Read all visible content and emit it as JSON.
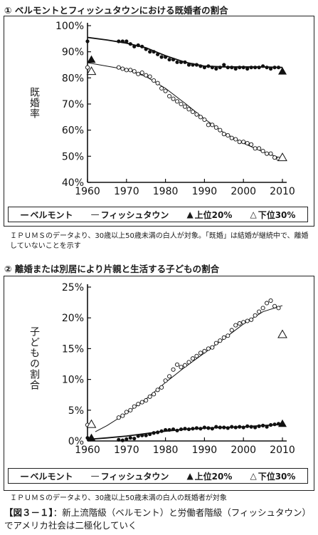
{
  "panel1_title": "① ベルモントとフィッシュタウンにおける既婚者の割合",
  "panel1_note": "ＩＰＵＭＳのデータより、30歳以上50歳未満の白人が対象。「既婚」は結婚が継続中で、離婚していないことを示す",
  "panel2_title": "② 離婚または別居により片親と生活する子どもの割合",
  "panel2_note": "ＩＰＵＭＳのデータより、30歳以上50歳未満の白人の既婚者が対象",
  "caption_label": "【図３－１】",
  "caption_text": "：新上流階級（ベルモント）と労働者階級（フィッシュタウン）でアメリカ社会は二極化していく",
  "legend": {
    "belmont": "ベルモント",
    "fishtown": "フィッシュタウン",
    "top20": "上位20%",
    "bottom30": "下位30%",
    "line_symbol": "—",
    "top_symbol": "▲",
    "bottom_symbol": "△"
  },
  "chart_data": [
    {
      "type": "scatter",
      "title": "① ベルモントとフィッシュタウンにおける既婚者の割合",
      "ylabel": "既婚率",
      "xlabel": "",
      "xlim": [
        1960,
        2010
      ],
      "ylim": [
        40,
        100
      ],
      "xticks": [
        1960,
        1970,
        1980,
        1990,
        2000,
        2010
      ],
      "yticks": [
        40,
        50,
        60,
        70,
        80,
        90,
        100
      ],
      "ytick_labels": [
        "40%",
        "50%",
        "60%",
        "70%",
        "80%",
        "90%",
        "100%"
      ],
      "grid": false,
      "legend_position": "bottom",
      "series": [
        {
          "name": "ベルモント",
          "marker": "filled-circle",
          "x": [
            1960,
            1968,
            1969,
            1970,
            1971,
            1972,
            1973,
            1974,
            1975,
            1976,
            1977,
            1978,
            1979,
            1980,
            1981,
            1982,
            1983,
            1984,
            1985,
            1986,
            1987,
            1988,
            1989,
            1990,
            1991,
            1992,
            1993,
            1994,
            1995,
            1996,
            1997,
            1998,
            1999,
            2000,
            2001,
            2002,
            2003,
            2004,
            2005,
            2006,
            2007,
            2008,
            2009
          ],
          "y": [
            94,
            94,
            94,
            94,
            93,
            92,
            92.5,
            92,
            91,
            90,
            90,
            89,
            88,
            88,
            87,
            87,
            86,
            86,
            86,
            85,
            85,
            85,
            84.5,
            84,
            84.5,
            84,
            83.5,
            84,
            85,
            84,
            84,
            83.5,
            84,
            84,
            83.5,
            84,
            84,
            84,
            84.5,
            84,
            83.5,
            84,
            84
          ]
        },
        {
          "name": "ベルモント 平滑線",
          "marker": "line",
          "x": [
            1960,
            1965,
            1970,
            1975,
            1980,
            1985,
            1990,
            1995,
            2000,
            2005,
            2010
          ],
          "y": [
            95.5,
            94.5,
            93.3,
            91.5,
            88.5,
            86,
            84.5,
            84.2,
            84.2,
            84.2,
            84
          ]
        },
        {
          "name": "フィッシュタウン",
          "marker": "open-circle",
          "x": [
            1960,
            1968,
            1969,
            1970,
            1971,
            1972,
            1973,
            1974,
            1975,
            1976,
            1977,
            1978,
            1979,
            1980,
            1981,
            1982,
            1983,
            1984,
            1985,
            1986,
            1987,
            1988,
            1989,
            1990,
            1991,
            1992,
            1993,
            1994,
            1995,
            1996,
            1997,
            1998,
            1999,
            2000,
            2001,
            2002,
            2003,
            2004,
            2005,
            2006,
            2007,
            2008,
            2009
          ],
          "y": [
            84,
            84,
            83.5,
            83,
            83,
            82.5,
            81.5,
            82,
            81,
            80.5,
            79,
            78,
            76,
            75,
            73,
            72,
            71,
            70,
            69,
            68,
            67,
            66,
            65,
            64,
            62,
            62,
            61,
            60,
            58.5,
            58,
            57,
            56.5,
            55.5,
            55.5,
            55,
            54.5,
            53,
            53,
            52,
            51,
            51,
            49.5,
            49
          ]
        },
        {
          "name": "フィッシュタウン 平滑線",
          "marker": "line",
          "x": [
            1960,
            1965,
            1970,
            1975,
            1980,
            1985,
            1990,
            1995,
            2000,
            2005,
            2010
          ],
          "y": [
            85.8,
            84.5,
            83.2,
            80.5,
            76,
            70.3,
            64.3,
            59,
            55,
            51.7,
            49
          ]
        },
        {
          "name": "上位20%",
          "marker": "filled-triangle",
          "x": [
            1961,
            2010
          ],
          "y": [
            87,
            82.5
          ]
        },
        {
          "name": "下位30%",
          "marker": "open-triangle",
          "x": [
            1961,
            2010
          ],
          "y": [
            82.5,
            49.5
          ]
        }
      ]
    },
    {
      "type": "scatter",
      "title": "② 離婚または別居により片親と生活する子どもの割合",
      "ylabel": "子どもの割合",
      "xlabel": "",
      "xlim": [
        1960,
        2010
      ],
      "ylim": [
        0,
        25
      ],
      "xticks": [
        1960,
        1970,
        1980,
        1990,
        2000,
        2010
      ],
      "yticks": [
        0,
        5,
        10,
        15,
        20,
        25
      ],
      "ytick_labels": [
        "0%",
        "5%",
        "10%",
        "15%",
        "20%",
        "25%"
      ],
      "grid": false,
      "legend_position": "bottom",
      "series": [
        {
          "name": "ベルモント",
          "marker": "filled-circle",
          "x": [
            1960,
            1968,
            1969,
            1970,
            1971,
            1972,
            1973,
            1974,
            1975,
            1976,
            1977,
            1978,
            1979,
            1980,
            1981,
            1982,
            1983,
            1984,
            1985,
            1986,
            1987,
            1988,
            1989,
            1990,
            1991,
            1992,
            1993,
            1994,
            1995,
            1996,
            1997,
            1998,
            1999,
            2000,
            2001,
            2002,
            2003,
            2004,
            2005,
            2006,
            2007,
            2008,
            2009
          ],
          "y": [
            0.5,
            0.2,
            0.1,
            0.3,
            0.5,
            0.4,
            0.8,
            0.9,
            0.9,
            1.1,
            1.3,
            1.4,
            1.6,
            1.8,
            1.8,
            1.9,
            1.7,
            1.9,
            2.0,
            1.9,
            2.0,
            2.1,
            2.0,
            2.2,
            2.1,
            2.0,
            2.3,
            2.2,
            2.2,
            2.1,
            2.3,
            2.2,
            2.3,
            2.2,
            2.4,
            2.3,
            2.2,
            2.4,
            2.5,
            2.3,
            2.6,
            2.7,
            2.8
          ]
        },
        {
          "name": "ベルモント 平滑線",
          "marker": "line",
          "x": [
            1961,
            1965,
            1970,
            1975,
            1980,
            1985,
            1990,
            1995,
            2000,
            2005,
            2010
          ],
          "y": [
            0.3,
            0.5,
            0.8,
            1.2,
            1.6,
            1.9,
            2.1,
            2.2,
            2.3,
            2.5,
            2.7
          ]
        },
        {
          "name": "フィッシュタウン",
          "marker": "open-circle",
          "x": [
            1960,
            1968,
            1969,
            1970,
            1971,
            1972,
            1973,
            1974,
            1975,
            1976,
            1977,
            1978,
            1979,
            1980,
            1981,
            1982,
            1983,
            1984,
            1985,
            1986,
            1987,
            1988,
            1989,
            1990,
            1991,
            1992,
            1993,
            1994,
            1995,
            1996,
            1997,
            1998,
            1999,
            2000,
            2001,
            2002,
            2003,
            2004,
            2005,
            2006,
            2007,
            2008,
            2009
          ],
          "y": [
            2.6,
            3.8,
            4.1,
            4.7,
            5.0,
            5.6,
            6.0,
            6.3,
            6.6,
            7.2,
            7.6,
            8.3,
            8.7,
            9.8,
            10.5,
            11.6,
            12.4,
            12.0,
            12.3,
            12.8,
            13.4,
            13.8,
            14.3,
            14.6,
            15.0,
            15.2,
            15.9,
            16.3,
            16.8,
            17.1,
            18.0,
            18.8,
            19.1,
            19.3,
            19.5,
            19.7,
            20.4,
            21.0,
            21.6,
            22.4,
            22.8,
            21.9,
            21.6
          ]
        },
        {
          "name": "フィッシュタウン 平滑線",
          "marker": "line",
          "x": [
            1962,
            1965,
            1970,
            1975,
            1980,
            1985,
            1990,
            1995,
            2000,
            2005,
            2010
          ],
          "y": [
            1.5,
            2.5,
            4.5,
            6.8,
            9.5,
            12.0,
            14.3,
            16.6,
            19.0,
            21.0,
            22.0
          ]
        },
        {
          "name": "上位20%",
          "marker": "filled-triangle",
          "x": [
            1961,
            2010
          ],
          "y": [
            0.5,
            2.8
          ]
        },
        {
          "name": "下位30%",
          "marker": "open-triangle",
          "x": [
            1961,
            2010
          ],
          "y": [
            2.7,
            17.3
          ]
        }
      ]
    }
  ]
}
